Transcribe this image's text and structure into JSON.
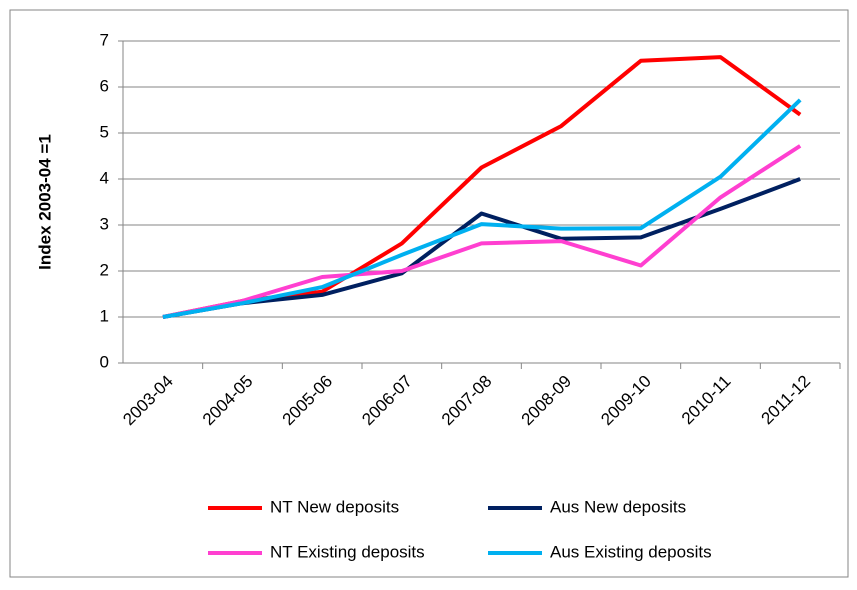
{
  "chart_data": {
    "type": "line",
    "y_label": "Index 2003-04 =1",
    "categories": [
      "2003-04",
      "2004-05",
      "2005-06",
      "2006-07",
      "2007-08",
      "2008-09",
      "2009-10",
      "2010-11",
      "2011-12"
    ],
    "series": [
      {
        "name": "NT New deposits",
        "color": "#ff0000",
        "values": [
          1,
          1.35,
          1.55,
          2.6,
          4.25,
          5.15,
          6.57,
          6.65,
          5.4
        ]
      },
      {
        "name": "Aus New deposits",
        "color": "#002060",
        "values": [
          1,
          1.3,
          1.48,
          1.95,
          3.25,
          2.7,
          2.73,
          3.35,
          4.0
        ]
      },
      {
        "name": "NT Existing deposits",
        "color": "#ff3fd0",
        "values": [
          1,
          1.35,
          1.87,
          2.0,
          2.6,
          2.65,
          2.12,
          3.6,
          4.72
        ]
      },
      {
        "name": "Aus Existing deposits",
        "color": "#00b0f0",
        "values": [
          1,
          1.3,
          1.65,
          2.35,
          3.02,
          2.92,
          2.93,
          4.05,
          5.72
        ]
      }
    ],
    "ylim": [
      0,
      7
    ],
    "yticks": [
      0,
      1,
      2,
      3,
      4,
      5,
      6,
      7
    ],
    "grid": true
  }
}
